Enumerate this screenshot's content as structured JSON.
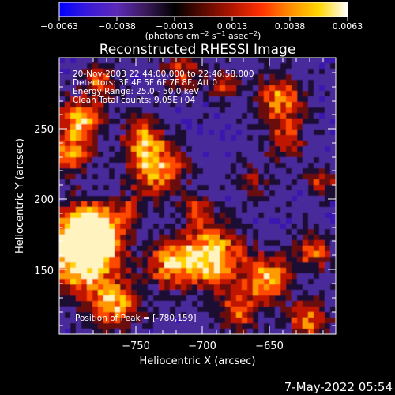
{
  "chart_data": {
    "type": "heatmap",
    "title": "Reconstructed RHESSI Image",
    "colorbar": {
      "tick_labels": [
        "−0.0063",
        "−0.0038",
        "−0.0013",
        "0.0013",
        "0.0038",
        "0.0063"
      ],
      "unit_text": "(photons cm",
      "unit_exp1": "−2",
      "unit_mid": " s",
      "unit_exp2": "−1",
      "unit_mid2": " asec",
      "unit_exp3": "−2",
      "unit_end": ")",
      "range": [
        -0.0063,
        0.0063
      ],
      "palette": [
        "#0000ff",
        "#3a1ad8",
        "#5c2ab8",
        "#3a1a5a",
        "#000000",
        "#5a0a00",
        "#b01500",
        "#ff3000",
        "#ff8c00",
        "#ffd700",
        "#ffffff"
      ]
    },
    "info": {
      "time": "20-Nov-2003 22:44:00.000 to 22:46:58.000",
      "detectors": "Detectors: 3F 4F 5F 6F 7F 8F, Att 0",
      "energy": "Energy Range: 25.0 - 50.0 keV",
      "clean": "Clean   Total counts: 9.05E+04",
      "peak": "Position of Peak = [-780,159]"
    },
    "xlabel": "Heliocentric X (arcsec)",
    "ylabel": "Heliocentric Y (arcsec)",
    "xticks": [
      "−750",
      "−700",
      "−650"
    ],
    "yticks": [
      "250",
      "200",
      "150"
    ],
    "xlim": [
      -795,
      -615
    ],
    "ylim": [
      102,
      282
    ],
    "colormap": "hot-cold (blue-purple negative, red-yellow-white positive)"
  },
  "footer": {
    "timestamp": "7-May-2022 05:54"
  }
}
